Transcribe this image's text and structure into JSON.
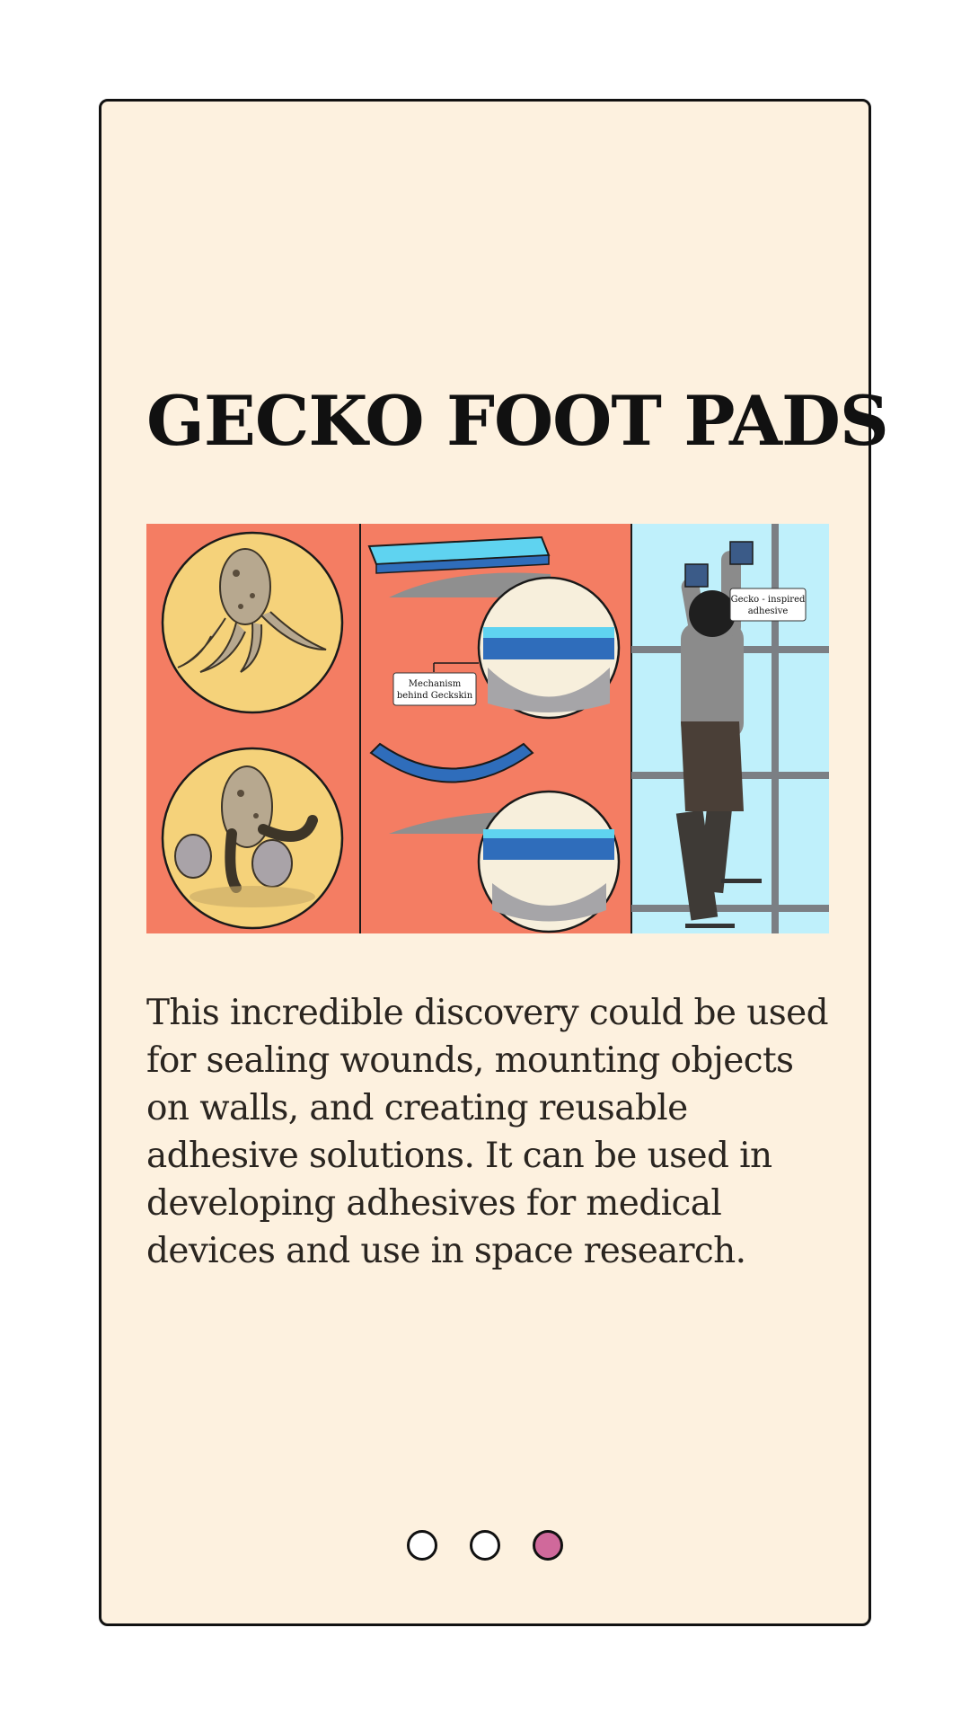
{
  "slide": {
    "title": "GECKO FOOT PADS",
    "illustration": {
      "callout_mechanism_line1": "Mechanism",
      "callout_mechanism_line2": "behind Geckskin",
      "callout_adhesive_line1": "Gecko - inspired",
      "callout_adhesive_line2": "adhesive"
    },
    "body": "This incredible discovery could be used for sealing wounds, mounting objects on walls, and creating reusable adhesive solutions. It can be used in developing adhesives for medical devices and use in space research."
  },
  "pagination": {
    "total": 3,
    "active_index": 2,
    "colors": {
      "active": "#d0699b",
      "inactive": "#ffffff"
    }
  },
  "colors": {
    "card_background": "#fdf1df",
    "panel_coral": "#f47d63",
    "panel_sky": "#bff0fb"
  }
}
